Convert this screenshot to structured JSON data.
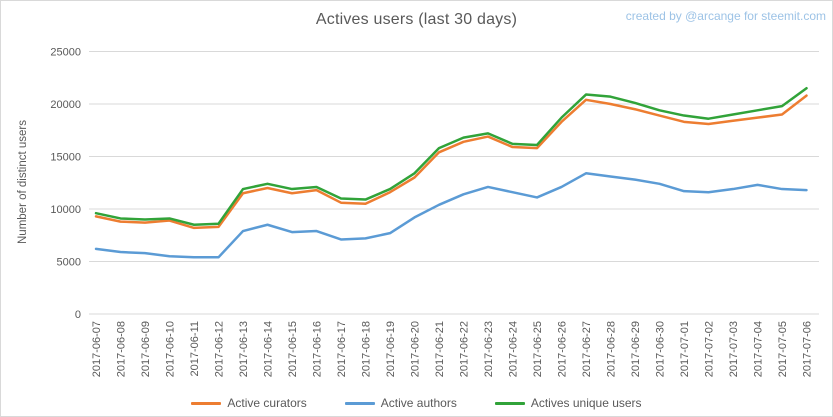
{
  "title": "Actives users (last 30 days)",
  "credit": "created by @arcange for steemit.com",
  "colors": {
    "grid": "#d9d9d9",
    "axis_text": "#595959",
    "title_text": "#595959",
    "credit_text": "#9dc3e6",
    "background": "#ffffff"
  },
  "chart_data": {
    "type": "line",
    "title": "Actives users (last 30 days)",
    "xlabel": "",
    "ylabel": "Number of distinct users",
    "ylim": [
      0,
      25000
    ],
    "ytick_step": 5000,
    "yticks": [
      0,
      5000,
      10000,
      15000,
      20000,
      25000
    ],
    "grid": true,
    "legend_position": "bottom",
    "categories": [
      "2017-06-07",
      "2017-06-08",
      "2017-06-09",
      "2017-06-10",
      "2017-06-11",
      "2017-06-12",
      "2017-06-13",
      "2017-06-14",
      "2017-06-15",
      "2017-06-16",
      "2017-06-17",
      "2017-06-18",
      "2017-06-19",
      "2017-06-20",
      "2017-06-21",
      "2017-06-22",
      "2017-06-23",
      "2017-06-24",
      "2017-06-25",
      "2017-06-26",
      "2017-06-27",
      "2017-06-28",
      "2017-06-29",
      "2017-06-30",
      "2017-07-01",
      "2017-07-02",
      "2017-07-03",
      "2017-07-04",
      "2017-07-05",
      "2017-07-06"
    ],
    "series": [
      {
        "name": "Active curators",
        "color": "#ED7D31",
        "values": [
          9300,
          8800,
          8700,
          8900,
          8200,
          8300,
          11500,
          12000,
          11500,
          11800,
          10600,
          10500,
          11600,
          13000,
          15400,
          16400,
          16900,
          15900,
          15800,
          18300,
          20400,
          20000,
          19500,
          18900,
          18300,
          18100,
          18400,
          18700,
          19000,
          20800
        ]
      },
      {
        "name": "Active authors",
        "color": "#5B9BD5",
        "values": [
          6200,
          5900,
          5800,
          5500,
          5400,
          5400,
          7900,
          8500,
          7800,
          7900,
          7100,
          7200,
          7700,
          9200,
          10400,
          11400,
          12100,
          11600,
          11100,
          12100,
          13400,
          13100,
          12800,
          12400,
          11700,
          11600,
          11900,
          12300,
          11900,
          11800
        ]
      },
      {
        "name": "Actives unique users",
        "color": "#31A339",
        "values": [
          9600,
          9100,
          9000,
          9100,
          8500,
          8600,
          11900,
          12400,
          11900,
          12100,
          11000,
          10900,
          11900,
          13400,
          15800,
          16800,
          17200,
          16200,
          16100,
          18700,
          20900,
          20700,
          20100,
          19400,
          18900,
          18600,
          19000,
          19400,
          19800,
          21500
        ]
      }
    ]
  }
}
